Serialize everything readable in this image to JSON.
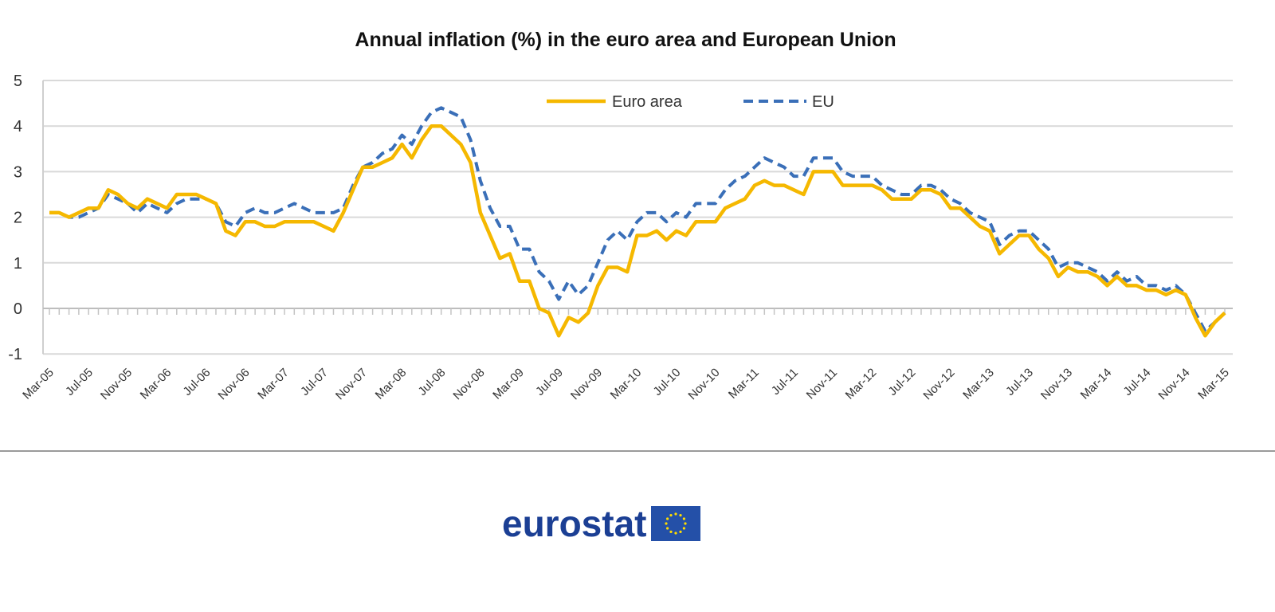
{
  "chart_data": {
    "type": "line",
    "title": "Annual inflation (%) in the euro area and European Union",
    "xlabel": "",
    "ylabel": "",
    "ylim": [
      -1,
      5
    ],
    "yticks": [
      "5",
      "4",
      "3",
      "2",
      "1",
      "0",
      "-1"
    ],
    "grid": true,
    "legend_position": "top-center",
    "x_start": "Mar-05",
    "x_end": "Mar-15",
    "x_tick_labels": [
      "Mar-05",
      "Jul-05",
      "Nov-05",
      "Mar-06",
      "Jul-06",
      "Nov-06",
      "Mar-07",
      "Jul-07",
      "Nov-07",
      "Mar-08",
      "Jul-08",
      "Nov-08",
      "Mar-09",
      "Jul-09",
      "Nov-09",
      "Mar-10",
      "Jul-10",
      "Nov-10",
      "Mar-11",
      "Jul-11",
      "Nov-11",
      "Mar-12",
      "Jul-12",
      "Nov-12",
      "Mar-13",
      "Jul-13",
      "Nov-13",
      "Mar-14",
      "Jul-14",
      "Nov-14",
      "Mar-15"
    ],
    "series": [
      {
        "name": "Euro area",
        "color": "#f5b800",
        "style": "solid",
        "values": [
          2.1,
          2.1,
          2.0,
          2.1,
          2.2,
          2.2,
          2.6,
          2.5,
          2.3,
          2.2,
          2.4,
          2.3,
          2.2,
          2.5,
          2.5,
          2.5,
          2.4,
          2.3,
          1.7,
          1.6,
          1.9,
          1.9,
          1.8,
          1.8,
          1.9,
          1.9,
          1.9,
          1.9,
          1.8,
          1.7,
          2.1,
          2.6,
          3.1,
          3.1,
          3.2,
          3.3,
          3.6,
          3.3,
          3.7,
          4.0,
          4.0,
          3.8,
          3.6,
          3.2,
          2.1,
          1.6,
          1.1,
          1.2,
          0.6,
          0.6,
          0.0,
          -0.1,
          -0.6,
          -0.2,
          -0.3,
          -0.1,
          0.5,
          0.9,
          0.9,
          0.8,
          1.6,
          1.6,
          1.7,
          1.5,
          1.7,
          1.6,
          1.9,
          1.9,
          1.9,
          2.2,
          2.3,
          2.4,
          2.7,
          2.8,
          2.7,
          2.7,
          2.6,
          2.5,
          3.0,
          3.0,
          3.0,
          2.7,
          2.7,
          2.7,
          2.7,
          2.6,
          2.4,
          2.4,
          2.4,
          2.6,
          2.6,
          2.5,
          2.2,
          2.2,
          2.0,
          1.8,
          1.7,
          1.2,
          1.4,
          1.6,
          1.6,
          1.3,
          1.1,
          0.7,
          0.9,
          0.8,
          0.8,
          0.7,
          0.5,
          0.7,
          0.5,
          0.5,
          0.4,
          0.4,
          0.3,
          0.4,
          0.3,
          -0.2,
          -0.6,
          -0.3,
          -0.1
        ]
      },
      {
        "name": "EU",
        "color": "#3a6fb8",
        "style": "dashed",
        "values": [
          2.1,
          2.1,
          2.0,
          2.0,
          2.1,
          2.2,
          2.5,
          2.4,
          2.3,
          2.1,
          2.3,
          2.2,
          2.1,
          2.3,
          2.4,
          2.4,
          2.4,
          2.3,
          1.9,
          1.8,
          2.1,
          2.2,
          2.1,
          2.1,
          2.2,
          2.3,
          2.2,
          2.1,
          2.1,
          2.1,
          2.2,
          2.7,
          3.1,
          3.2,
          3.4,
          3.5,
          3.8,
          3.6,
          4.0,
          4.3,
          4.4,
          4.3,
          4.2,
          3.7,
          2.8,
          2.2,
          1.8,
          1.8,
          1.3,
          1.3,
          0.8,
          0.6,
          0.2,
          0.6,
          0.3,
          0.5,
          1.0,
          1.5,
          1.7,
          1.5,
          1.9,
          2.1,
          2.1,
          1.9,
          2.1,
          2.0,
          2.3,
          2.3,
          2.3,
          2.6,
          2.8,
          2.9,
          3.1,
          3.3,
          3.2,
          3.1,
          2.9,
          2.9,
          3.3,
          3.3,
          3.3,
          3.0,
          2.9,
          2.9,
          2.9,
          2.7,
          2.6,
          2.5,
          2.5,
          2.7,
          2.7,
          2.6,
          2.4,
          2.3,
          2.1,
          2.0,
          1.9,
          1.4,
          1.6,
          1.7,
          1.7,
          1.5,
          1.3,
          0.9,
          1.0,
          1.0,
          0.9,
          0.8,
          0.6,
          0.8,
          0.6,
          0.7,
          0.5,
          0.5,
          0.4,
          0.5,
          0.3,
          -0.1,
          -0.5,
          -0.3,
          -0.1
        ]
      }
    ]
  },
  "logo": {
    "text": "eurostat"
  }
}
